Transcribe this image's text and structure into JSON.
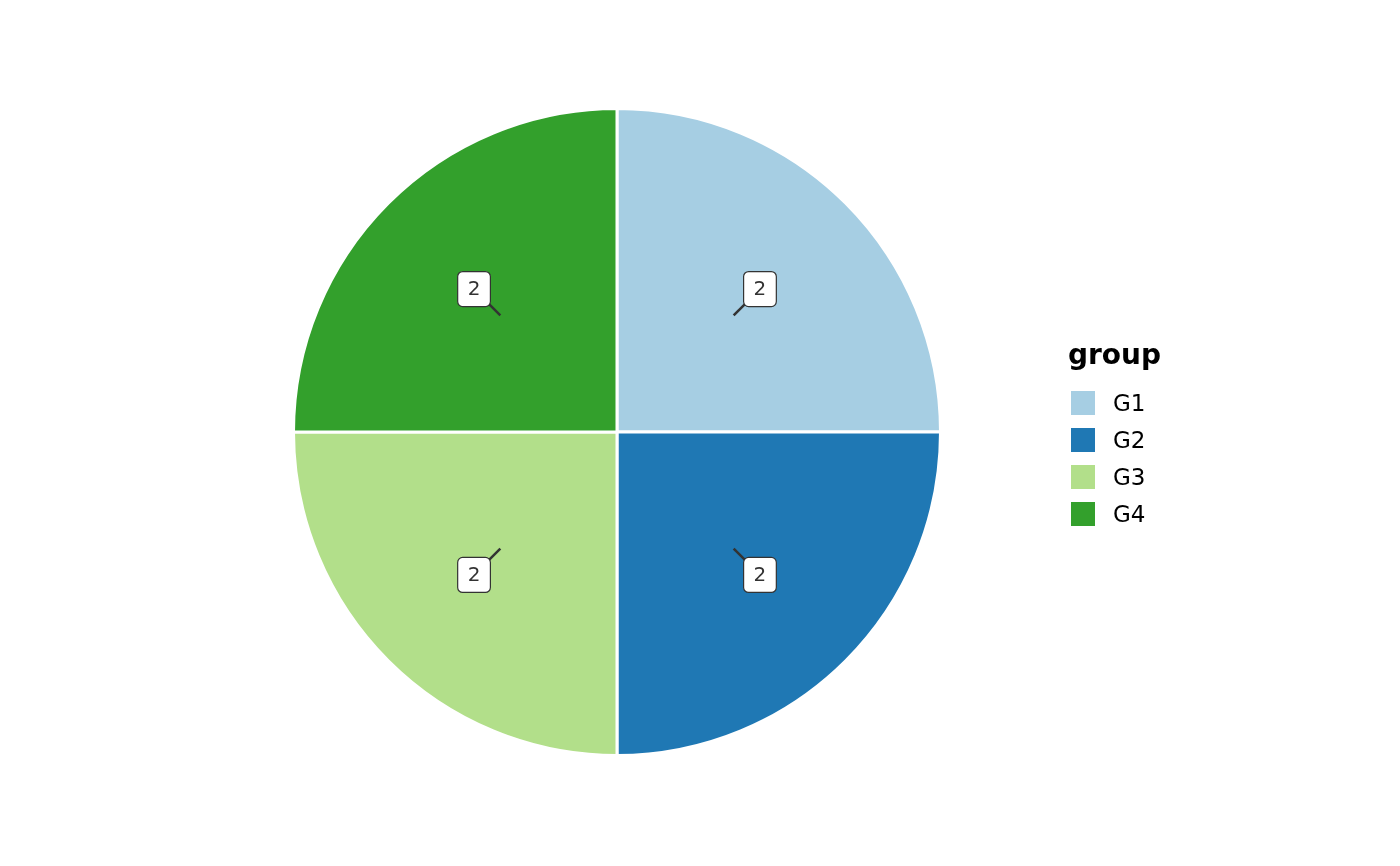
{
  "chart_data": {
    "type": "pie",
    "categories": [
      "G1",
      "G2",
      "G3",
      "G4"
    ],
    "values": [
      2,
      2,
      2,
      2
    ],
    "colors": [
      "#a6cee3",
      "#1f78b4",
      "#b2df8a",
      "#33a02c"
    ],
    "legend_title": "group",
    "legend": "right",
    "data_labels": true
  }
}
